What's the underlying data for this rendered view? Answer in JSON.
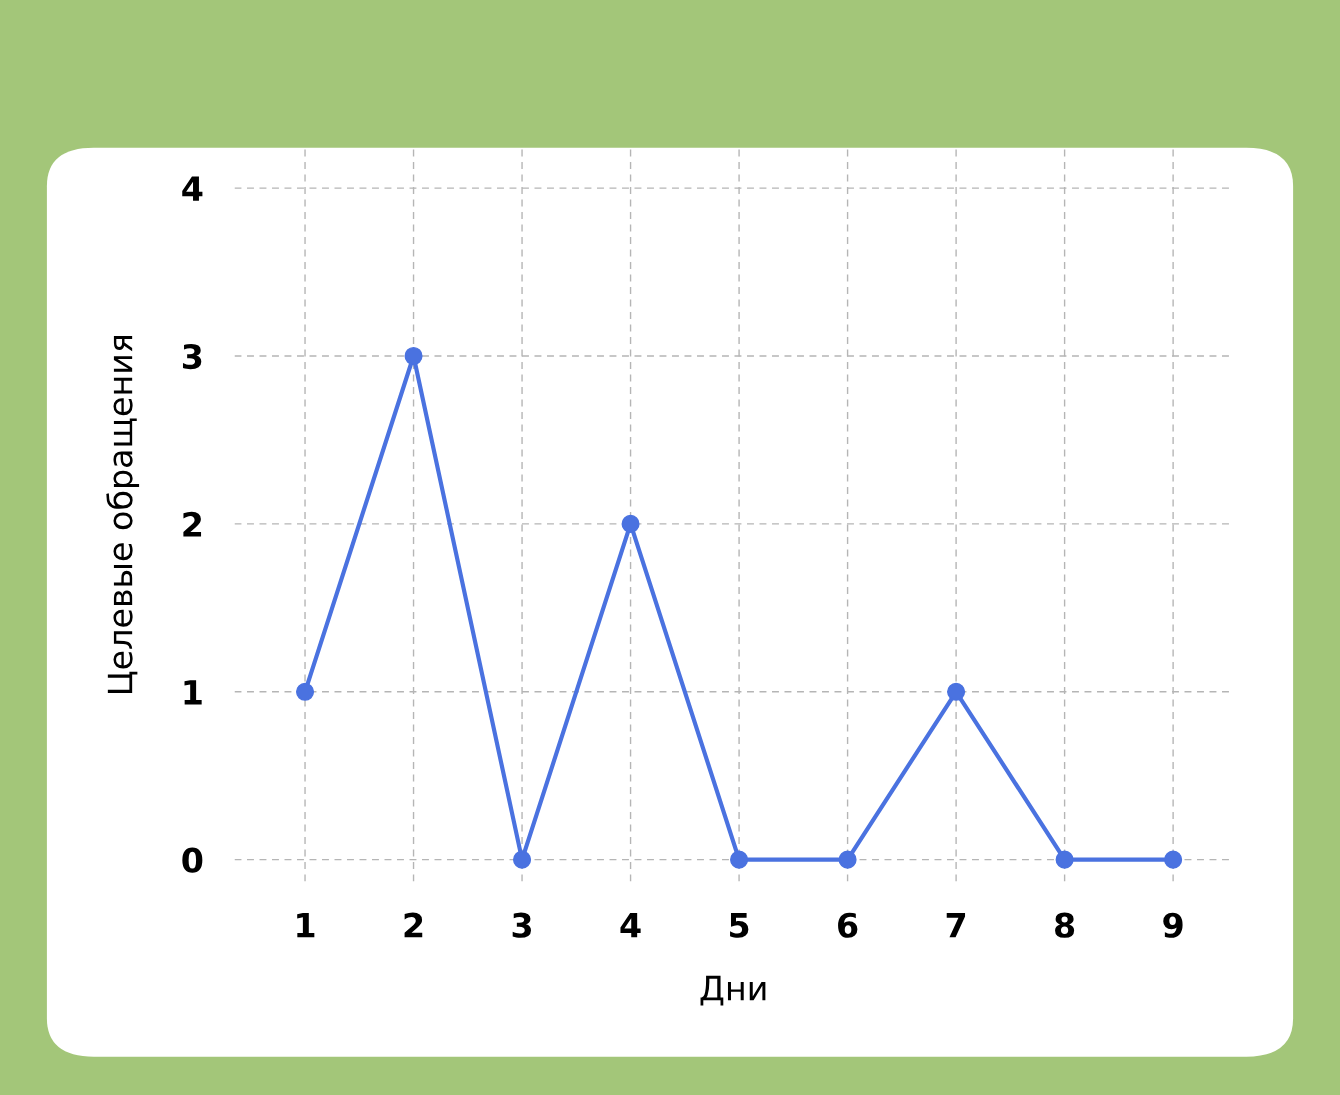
{
  "chart_data": {
    "type": "line",
    "xlabel": "Дни",
    "ylabel": "Целевые обращения",
    "x": [
      1,
      2,
      3,
      4,
      5,
      6,
      7,
      8,
      9
    ],
    "series": [
      {
        "color": "#4a72e0",
        "values": [
          1,
          3,
          0,
          2,
          0,
          0,
          1,
          0,
          0
        ]
      }
    ],
    "xlim": [
      0.35,
      9.55
    ],
    "xticks": [
      1,
      2,
      3,
      4,
      5,
      6,
      7,
      8,
      9
    ],
    "ylim": [
      -0.13,
      4.24
    ],
    "yticks": [
      0,
      1,
      2,
      3,
      4
    ],
    "grid": true,
    "marker": "circle",
    "line_style": "solid"
  }
}
